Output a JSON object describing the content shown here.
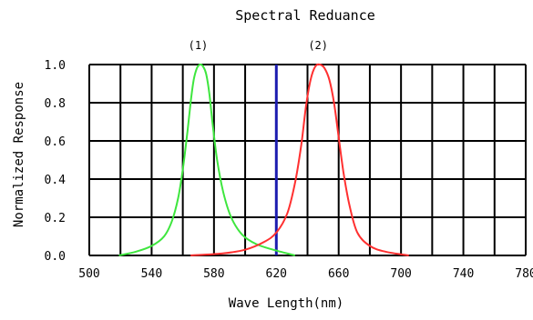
{
  "chart_data": {
    "type": "line",
    "title": "Spectral  Reduance",
    "xlabel": "Wave Length(nm)",
    "ylabel": "Normalized   Response",
    "xlim": [
      500,
      780
    ],
    "ylim": [
      0,
      1.0
    ],
    "x_ticks": [
      "500",
      "540",
      "580",
      "620",
      "660",
      "700",
      "740",
      "780"
    ],
    "y_ticks": [
      "0.0",
      "0.2",
      "0.4",
      "0.6",
      "0.8",
      "1.0"
    ],
    "grid": true,
    "marker_line": {
      "x": 620,
      "color": "#1c1cb0"
    },
    "series": [
      {
        "name": "(1)",
        "color": "#3ee63e",
        "points": [
          [
            519,
            0.0
          ],
          [
            530,
            0.02
          ],
          [
            540,
            0.05
          ],
          [
            548,
            0.1
          ],
          [
            553,
            0.18
          ],
          [
            557,
            0.3
          ],
          [
            560,
            0.45
          ],
          [
            563,
            0.65
          ],
          [
            565,
            0.8
          ],
          [
            567,
            0.92
          ],
          [
            569,
            0.98
          ],
          [
            571,
            1.0
          ],
          [
            573,
            0.99
          ],
          [
            575,
            0.95
          ],
          [
            577,
            0.85
          ],
          [
            579,
            0.7
          ],
          [
            582,
            0.5
          ],
          [
            586,
            0.33
          ],
          [
            591,
            0.2
          ],
          [
            598,
            0.11
          ],
          [
            607,
            0.06
          ],
          [
            618,
            0.03
          ],
          [
            632,
            0.0
          ]
        ]
      },
      {
        "name": "(2)",
        "color": "#ff3030",
        "points": [
          [
            565,
            0.0
          ],
          [
            585,
            0.01
          ],
          [
            600,
            0.03
          ],
          [
            612,
            0.07
          ],
          [
            620,
            0.12
          ],
          [
            627,
            0.22
          ],
          [
            632,
            0.38
          ],
          [
            636,
            0.58
          ],
          [
            639,
            0.78
          ],
          [
            642,
            0.92
          ],
          [
            645,
            0.99
          ],
          [
            648,
            1.0
          ],
          [
            651,
            0.98
          ],
          [
            654,
            0.92
          ],
          [
            657,
            0.8
          ],
          [
            660,
            0.62
          ],
          [
            663,
            0.44
          ],
          [
            667,
            0.26
          ],
          [
            672,
            0.12
          ],
          [
            680,
            0.05
          ],
          [
            690,
            0.02
          ],
          [
            705,
            0.0
          ]
        ]
      }
    ]
  }
}
